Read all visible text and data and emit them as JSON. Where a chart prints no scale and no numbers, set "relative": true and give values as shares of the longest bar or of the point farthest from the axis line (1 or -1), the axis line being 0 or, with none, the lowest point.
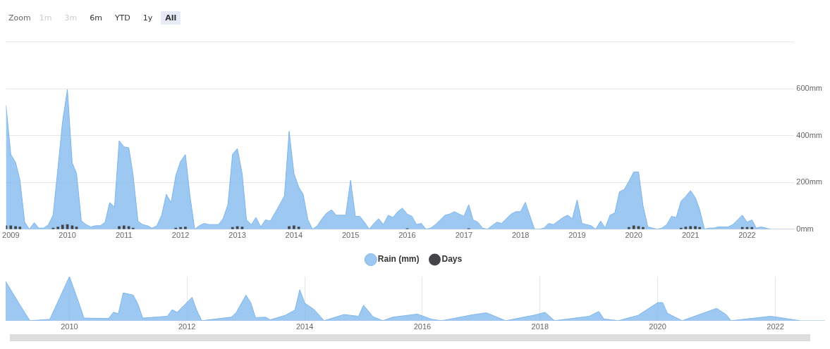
{
  "chart_data": [
    {
      "type": "area",
      "annotations": [
        "Zoom",
        "1m",
        "3m",
        "6m",
        "YTD",
        "1y",
        "All"
      ],
      "x": [
        "2008-12",
        "2009-01",
        "2009-02",
        "2009-03",
        "2009-04",
        "2009-05",
        "2009-06",
        "2009-07",
        "2009-08",
        "2009-09",
        "2009-10",
        "2009-11",
        "2009-12",
        "2010-01",
        "2010-02",
        "2010-03",
        "2010-04",
        "2010-05",
        "2010-06",
        "2010-07",
        "2010-08",
        "2010-09",
        "2010-10",
        "2010-11",
        "2010-12",
        "2011-01",
        "2011-02",
        "2011-03",
        "2011-04",
        "2011-05",
        "2011-06",
        "2011-07",
        "2011-08",
        "2011-09",
        "2011-10",
        "2011-11",
        "2011-12",
        "2012-01",
        "2012-02",
        "2012-03",
        "2012-04",
        "2012-05",
        "2012-06",
        "2012-07",
        "2012-08",
        "2012-09",
        "2012-10",
        "2012-11",
        "2012-12",
        "2013-01",
        "2013-02",
        "2013-03",
        "2013-04",
        "2013-05",
        "2013-06",
        "2013-07",
        "2013-08",
        "2013-09",
        "2013-10",
        "2013-11",
        "2013-12",
        "2014-01",
        "2014-02",
        "2014-03",
        "2014-04",
        "2014-05",
        "2014-06",
        "2014-07",
        "2014-08",
        "2014-09",
        "2014-10",
        "2014-11",
        "2014-12",
        "2015-01",
        "2015-02",
        "2015-03",
        "2015-04",
        "2015-05",
        "2015-06",
        "2015-07",
        "2015-08",
        "2015-09",
        "2015-10",
        "2015-11",
        "2015-12",
        "2016-01",
        "2016-02",
        "2016-03",
        "2016-04",
        "2016-05",
        "2016-06",
        "2016-07",
        "2016-08",
        "2016-09",
        "2016-10",
        "2016-11",
        "2016-12",
        "2017-01",
        "2017-02",
        "2017-03",
        "2017-04",
        "2017-05",
        "2017-06",
        "2017-07",
        "2017-08",
        "2017-09",
        "2017-10",
        "2017-11",
        "2017-12",
        "2018-01",
        "2018-02",
        "2018-03",
        "2018-04",
        "2018-05",
        "2018-06",
        "2018-07",
        "2018-08",
        "2018-09",
        "2018-10",
        "2018-11",
        "2018-12",
        "2019-01",
        "2019-02",
        "2019-03",
        "2019-04",
        "2019-05",
        "2019-06",
        "2019-07",
        "2019-08",
        "2019-09",
        "2019-10",
        "2019-11",
        "2019-12",
        "2020-01",
        "2020-02",
        "2020-03",
        "2020-04",
        "2020-05",
        "2020-06",
        "2020-07",
        "2020-08",
        "2020-09",
        "2020-10",
        "2020-11",
        "2020-12",
        "2021-01",
        "2021-02",
        "2021-03",
        "2021-04",
        "2021-05",
        "2021-06",
        "2021-07",
        "2021-08",
        "2021-09",
        "2021-10",
        "2021-11",
        "2021-12",
        "2022-01",
        "2022-02",
        "2022-03",
        "2022-04",
        "2022-05",
        "2022-06"
      ],
      "series": [
        {
          "name": "Rain (mm)",
          "color": "#7cb5ec",
          "values": [
            530,
            320,
            285,
            210,
            30,
            0,
            28,
            5,
            5,
            20,
            60,
            260,
            460,
            597,
            284,
            239,
            36,
            20,
            10,
            15,
            15,
            30,
            114,
            95,
            378,
            352,
            348,
            230,
            35,
            20,
            15,
            5,
            15,
            60,
            149,
            114,
            229,
            290,
            319,
            145,
            0,
            15,
            25,
            20,
            20,
            20,
            45,
            105,
            320,
            345,
            237,
            40,
            20,
            50,
            10,
            40,
            35,
            70,
            105,
            144,
            418,
            238,
            180,
            150,
            40,
            0,
            15,
            45,
            70,
            83,
            60,
            60,
            60,
            209,
            55,
            55,
            30,
            0,
            25,
            45,
            20,
            60,
            50,
            75,
            90,
            65,
            55,
            20,
            25,
            0,
            5,
            20,
            40,
            60,
            65,
            75,
            65,
            55,
            105,
            40,
            30,
            5,
            0,
            15,
            30,
            25,
            45,
            65,
            75,
            75,
            115,
            60,
            0,
            0,
            5,
            25,
            20,
            35,
            50,
            60,
            45,
            125,
            25,
            20,
            15,
            0,
            35,
            5,
            60,
            70,
            160,
            170,
            205,
            245,
            245,
            100,
            10,
            5,
            0,
            5,
            20,
            55,
            50,
            120,
            140,
            165,
            135,
            85,
            0,
            5,
            5,
            10,
            10,
            10,
            20,
            40,
            60,
            30,
            40,
            5,
            10,
            5,
            0
          ]
        },
        {
          "name": "Days",
          "type": "bar",
          "color": "#434348",
          "x": [
            "2008-12",
            "2009-01",
            "2009-02",
            "2009-03",
            "2009-10",
            "2009-11",
            "2009-12",
            "2010-01",
            "2010-02",
            "2010-03",
            "2010-12",
            "2011-01",
            "2011-02",
            "2011-03",
            "2011-12",
            "2012-01",
            "2012-02",
            "2012-12",
            "2013-01",
            "2013-02",
            "2013-12",
            "2014-01",
            "2014-02",
            "2016-01",
            "2017-02",
            "2019-12",
            "2020-01",
            "2020-02",
            "2020-03",
            "2020-11",
            "2020-12",
            "2021-01",
            "2021-02",
            "2021-03",
            "2021-12",
            "2022-01",
            "2022-02"
          ],
          "values": [
            15,
            15,
            12,
            10,
            5,
            10,
            18,
            20,
            15,
            10,
            12,
            15,
            12,
            5,
            5,
            8,
            10,
            8,
            12,
            10,
            12,
            15,
            10,
            3,
            3,
            8,
            15,
            12,
            8,
            5,
            10,
            12,
            12,
            8,
            8,
            8,
            8
          ]
        }
      ],
      "xlim": [
        "2008-12",
        "2022-11"
      ],
      "xticks": [
        "2009",
        "2010",
        "2011",
        "2012",
        "2013",
        "2014",
        "2015",
        "2016",
        "2017",
        "2018",
        "2019",
        "2020",
        "2021",
        "2022"
      ],
      "ylim": [
        0,
        800
      ],
      "yticks": [
        {
          "value": 0,
          "label": "0mm"
        },
        {
          "value": 200,
          "label": "200mm"
        },
        {
          "value": 400,
          "label": "400mm"
        },
        {
          "value": 600,
          "label": "600mm"
        },
        {
          "value": 800,
          "label": null
        }
      ],
      "grid": "y",
      "legend": "bottom",
      "marker": "none"
    },
    {
      "type": "area",
      "relative": true,
      "tick_labels": "x",
      "grid": "x",
      "x": [
        "2008-12",
        "2009-03",
        "2009-05",
        "2009-09",
        "2010-01",
        "2010-03",
        "2010-04",
        "2010-09",
        "2010-10",
        "2010-11",
        "2010-12",
        "2011-02",
        "2011-03",
        "2011-04",
        "2011-09",
        "2011-10",
        "2011-11",
        "2012-02",
        "2012-03",
        "2012-04",
        "2012-10",
        "2012-11",
        "2013-01",
        "2013-02",
        "2013-03",
        "2013-05",
        "2013-06",
        "2013-09",
        "2013-11",
        "2013-12",
        "2014-01",
        "2014-03",
        "2014-05",
        "2014-09",
        "2014-12",
        "2015-01",
        "2015-03",
        "2015-05",
        "2015-07",
        "2015-12",
        "2016-03",
        "2016-05",
        "2016-11",
        "2017-02",
        "2017-06",
        "2017-12",
        "2018-02",
        "2018-04",
        "2018-11",
        "2019-01",
        "2019-02",
        "2019-05",
        "2019-09",
        "2020-01",
        "2020-02",
        "2020-03",
        "2020-06",
        "2020-11",
        "2021-01",
        "2021-03",
        "2021-04",
        "2021-12",
        "2022-02",
        "2022-06"
      ],
      "series": [
        {
          "color": "#7cb5ec",
          "values": [
            0.89,
            0.35,
            0,
            0.03,
            1,
            0.4,
            0.06,
            0.05,
            0.19,
            0.16,
            0.63,
            0.58,
            0.39,
            0.06,
            0.1,
            0.25,
            0.19,
            0.53,
            0.24,
            0,
            0.08,
            0.18,
            0.58,
            0.4,
            0.07,
            0.08,
            0.02,
            0.12,
            0.24,
            0.7,
            0.4,
            0.25,
            0,
            0.14,
            0.1,
            0.35,
            0.09,
            0,
            0.08,
            0.15,
            0.03,
            0,
            0.13,
            0.18,
            0,
            0.13,
            0.19,
            0,
            0.1,
            0.21,
            0.04,
            0,
            0.12,
            0.41,
            0.41,
            0.17,
            0,
            0.2,
            0.28,
            0.14,
            0,
            0.1,
            0.07,
            0
          ]
        }
      ],
      "xlim": [
        "2008-12",
        "2022-11"
      ],
      "xticks": [
        "2010",
        "2012",
        "2014",
        "2016",
        "2018",
        "2020",
        "2022"
      ],
      "marker": "none"
    }
  ]
}
